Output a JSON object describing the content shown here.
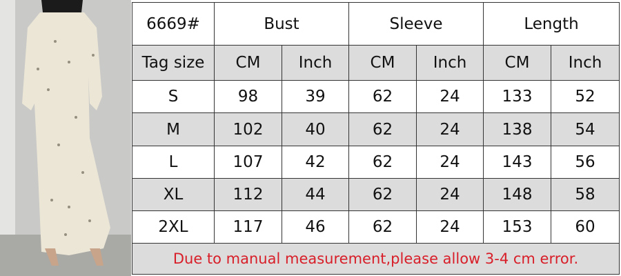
{
  "model": "6669#",
  "groups": [
    "Bust",
    "Sleeve",
    "Length"
  ],
  "units_header": {
    "label": "Tag size",
    "units": [
      "CM",
      "Inch",
      "CM",
      "Inch",
      "CM",
      "Inch"
    ]
  },
  "rows": [
    {
      "size": "S",
      "values": [
        "98",
        "39",
        "62",
        "24",
        "133",
        "52"
      ]
    },
    {
      "size": "M",
      "values": [
        "102",
        "40",
        "62",
        "24",
        "138",
        "54"
      ]
    },
    {
      "size": "L",
      "values": [
        "107",
        "42",
        "62",
        "24",
        "143",
        "56"
      ]
    },
    {
      "size": "XL",
      "values": [
        "112",
        "44",
        "62",
        "24",
        "148",
        "58"
      ]
    },
    {
      "size": "2XL",
      "values": [
        "117",
        "46",
        "62",
        "24",
        "153",
        "60"
      ]
    }
  ],
  "note": "Due to manual measurement,please allow 3-4 cm error.",
  "colors": {
    "note": "#d81e28",
    "shaded_row": "#dcdcdc",
    "border": "#333333"
  }
}
